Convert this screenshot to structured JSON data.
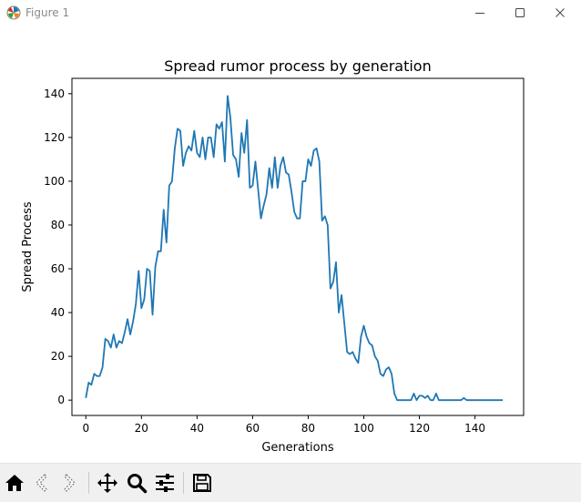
{
  "window": {
    "title": "Figure 1"
  },
  "icons": {
    "app": "matplotlib-icon",
    "minimize": "minimize-icon",
    "maximize": "maximize-icon",
    "close": "close-icon",
    "home": "home-icon",
    "back": "back-arrow-icon",
    "forward": "forward-arrow-icon",
    "pan": "pan-move-icon",
    "zoom": "zoom-magnifier-icon",
    "configure": "configure-subplots-icon",
    "save": "save-floppy-icon"
  },
  "chart_data": {
    "type": "line",
    "title": "Spread rumor process by generation",
    "xlabel": "Generations",
    "ylabel": "Spread Process",
    "xlim": [
      -5,
      157.5
    ],
    "ylim": [
      -7,
      147
    ],
    "xticks": [
      0,
      20,
      40,
      60,
      80,
      100,
      120,
      140
    ],
    "yticks": [
      0,
      20,
      40,
      60,
      80,
      100,
      120,
      140
    ],
    "color": "#1f77b4",
    "grid": false,
    "series": [
      {
        "x": [
          0,
          1,
          2,
          3,
          4,
          5,
          6,
          7,
          8,
          9,
          10,
          11,
          12,
          13,
          14,
          15,
          16,
          17,
          18,
          19,
          20,
          21,
          22,
          23,
          24,
          25,
          26,
          27,
          28,
          29,
          30,
          31,
          32,
          33,
          34,
          35,
          36,
          37,
          38,
          39,
          40,
          41,
          42,
          43,
          44,
          45,
          46,
          47,
          48,
          49,
          50,
          51,
          52,
          53,
          54,
          55,
          56,
          57,
          58,
          59,
          60,
          61,
          62,
          63,
          64,
          65,
          66,
          67,
          68,
          69,
          70,
          71,
          72,
          73,
          74,
          75,
          76,
          77,
          78,
          79,
          80,
          81,
          82,
          83,
          84,
          85,
          86,
          87,
          88,
          89,
          90,
          91,
          92,
          93,
          94,
          95,
          96,
          97,
          98,
          99,
          100,
          101,
          102,
          103,
          104,
          105,
          106,
          107,
          108,
          109,
          110,
          111,
          112,
          113,
          114,
          115,
          116,
          117,
          118,
          119,
          120,
          121,
          122,
          123,
          124,
          125,
          126,
          127,
          128,
          129,
          130,
          131,
          132,
          133,
          134,
          135,
          136,
          137,
          138,
          139,
          140,
          141,
          142,
          143,
          144,
          145,
          146,
          147,
          148,
          149,
          150
        ],
        "y": [
          1,
          8,
          7,
          12,
          11,
          11,
          15,
          28,
          27,
          24,
          30,
          24,
          27,
          26,
          31,
          37,
          30,
          36,
          44,
          59,
          42,
          46,
          60,
          59,
          39,
          61,
          68,
          68,
          87,
          72,
          98,
          100,
          115,
          124,
          123,
          107,
          113,
          116,
          114,
          123,
          113,
          111,
          120,
          110,
          120,
          120,
          111,
          126,
          124,
          127,
          109,
          139,
          129,
          112,
          110,
          102,
          122,
          113,
          128,
          97,
          98,
          109,
          96,
          83,
          89,
          94,
          106,
          97,
          111,
          97,
          107,
          111,
          104,
          103,
          95,
          86,
          83,
          83,
          100,
          100,
          110,
          107,
          114,
          115,
          109,
          82,
          84,
          80,
          51,
          54,
          63,
          40,
          48,
          35,
          22,
          21,
          22,
          19,
          17,
          29,
          34,
          29,
          26,
          25,
          20,
          18,
          12,
          11,
          14,
          15,
          12,
          3,
          0,
          0,
          0,
          0,
          0,
          0,
          3,
          0,
          2,
          2,
          1,
          2,
          0,
          0,
          3,
          0,
          0,
          0,
          0,
          0,
          0,
          0,
          0,
          0,
          1,
          0,
          0,
          0,
          0,
          0,
          0,
          0,
          0,
          0,
          0,
          0,
          0,
          0,
          0
        ]
      }
    ]
  }
}
